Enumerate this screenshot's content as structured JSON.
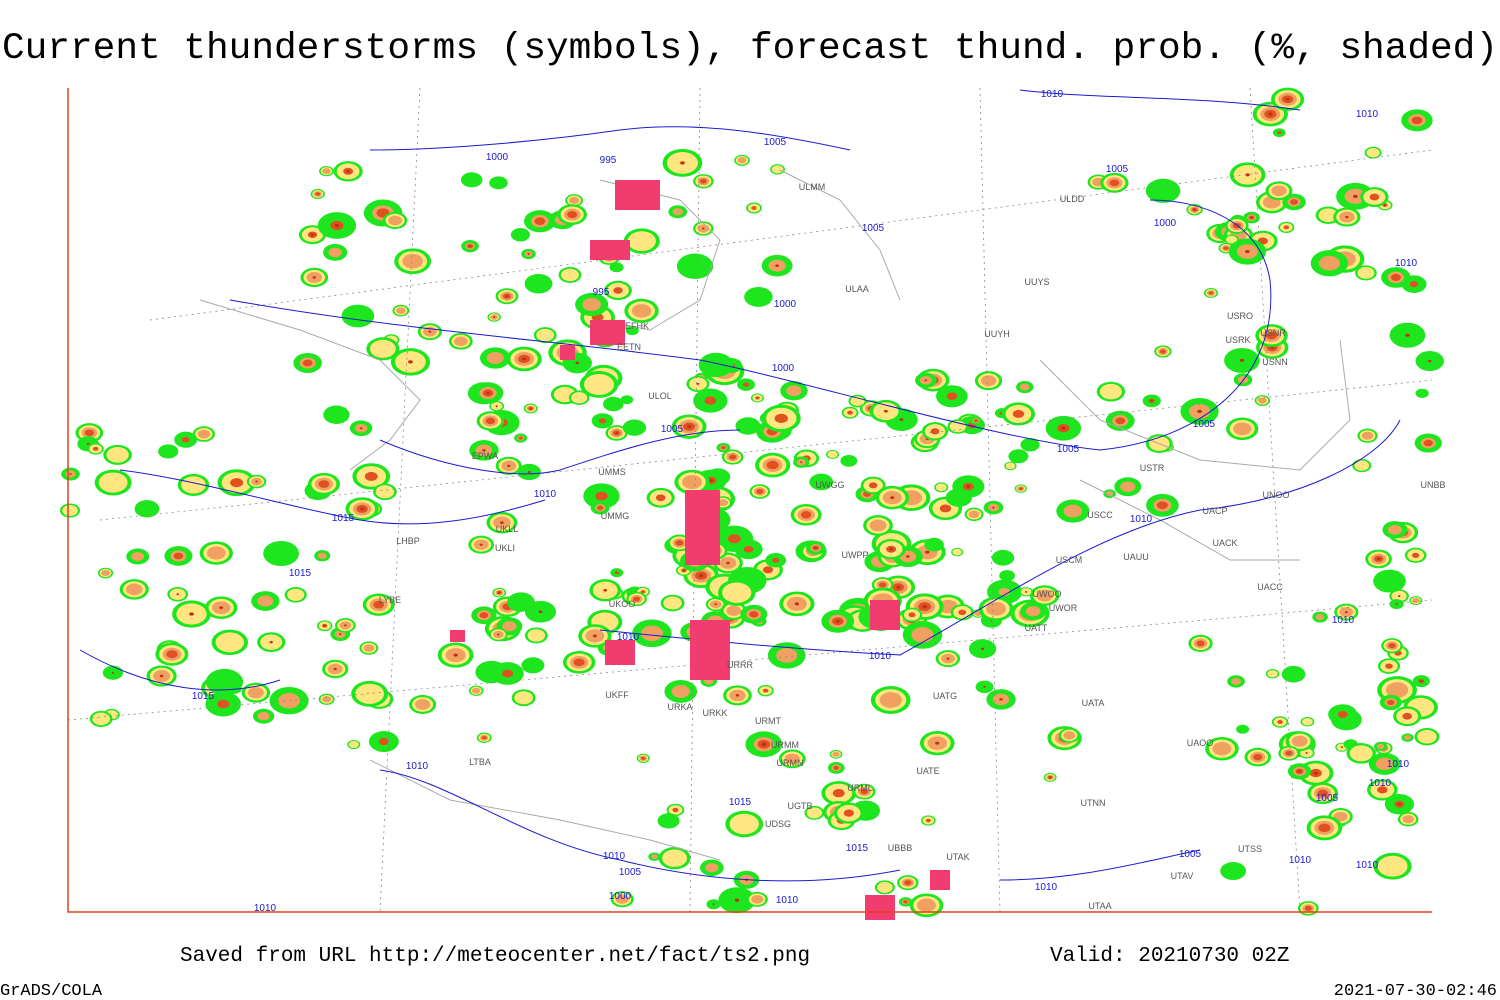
{
  "header": {
    "title": "Current thunderstorms (symbols), forecast thund. prob. (%, shaded)"
  },
  "footer": {
    "source": "Saved from URL http://meteocenter.net/fact/ts2.png",
    "valid": "Valid: 20210730 02Z",
    "software": "GrADS/COLA",
    "timestamp": "2021-07-30-02:46"
  },
  "isobar_labels": [
    "1010",
    "1000",
    "995",
    "1005",
    "1005",
    "1005",
    "1000",
    "1010",
    "1010",
    "995",
    "1000",
    "1000",
    "1005",
    "1005",
    "1005",
    "1010",
    "1010",
    "1015",
    "1015",
    "1010",
    "1010",
    "1010",
    "1015",
    "1010",
    "1015",
    "1015",
    "1010",
    "1005",
    "1000",
    "1010",
    "1010",
    "1005",
    "1010",
    "1010",
    "1010",
    "1010",
    "1005",
    "1010"
  ],
  "stations": [
    "ULMM",
    "ULDD",
    "ULAA",
    "UUYS",
    "UUYH",
    "USRO",
    "USRK",
    "USNR",
    "USNN",
    "EFHK",
    "EETN",
    "ULOL",
    "EPWA",
    "UMMS",
    "UMMG",
    "UKLL",
    "UKLI",
    "LHBP",
    "LYBE",
    "UKOO",
    "URRR",
    "UKFF",
    "URKA",
    "URKK",
    "URMT",
    "URMM",
    "URMN",
    "URML",
    "UGTB",
    "UDSG",
    "UBBB",
    "UTAK",
    "UATE",
    "UATG",
    "UATA",
    "UACC",
    "UACK",
    "UAUU",
    "USCM",
    "UWOR",
    "UWOO",
    "UATT",
    "UAOO",
    "UTNN",
    "UTSS",
    "UTAA",
    "UTAV",
    "UNBB",
    "UNOO",
    "UACP",
    "USCC",
    "USTR",
    "UWPP",
    "UWGG",
    "LTBA"
  ]
}
